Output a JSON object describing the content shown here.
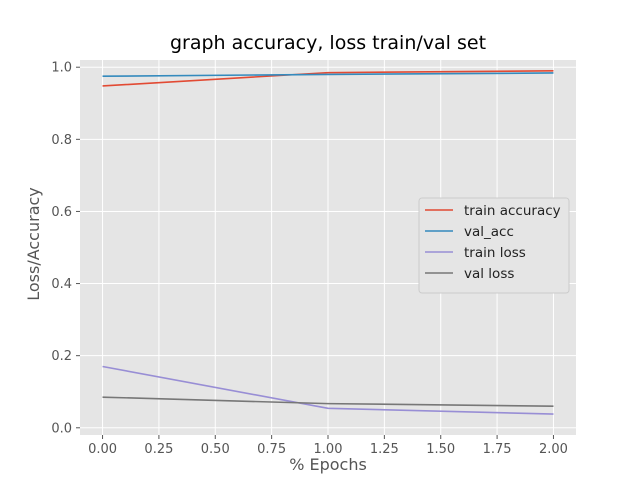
{
  "chart_data": {
    "type": "line",
    "title": "graph accuracy, loss train/val set",
    "xlabel": "% Epochs",
    "ylabel": "Loss/Accuracy",
    "x": [
      0,
      1,
      2
    ],
    "xlim": [
      -0.1,
      2.1
    ],
    "ylim": [
      -0.02,
      1.02
    ],
    "xticks": [
      0,
      0.25,
      0.5,
      0.75,
      1,
      1.25,
      1.5,
      1.75,
      2
    ],
    "xtick_labels": [
      "0.00",
      "0.25",
      "0.50",
      "0.75",
      "1.00",
      "1.25",
      "1.50",
      "1.75",
      "2.00"
    ],
    "yticks": [
      0,
      0.2,
      0.4,
      0.6,
      0.8,
      1.0
    ],
    "ytick_labels": [
      "0.0",
      "0.2",
      "0.4",
      "0.6",
      "0.8",
      "1.0"
    ],
    "grid": true,
    "legend_position": "center-right",
    "series": [
      {
        "name": "train accuracy",
        "color": "#E24A33",
        "values": [
          0.948,
          0.985,
          0.99
        ]
      },
      {
        "name": "val_acc",
        "color": "#348ABD",
        "values": [
          0.975,
          0.98,
          0.984
        ]
      },
      {
        "name": "train loss",
        "color": "#988ED5",
        "values": [
          0.17,
          0.054,
          0.038
        ]
      },
      {
        "name": "val loss",
        "color": "#777777",
        "values": [
          0.085,
          0.067,
          0.06
        ]
      }
    ]
  }
}
